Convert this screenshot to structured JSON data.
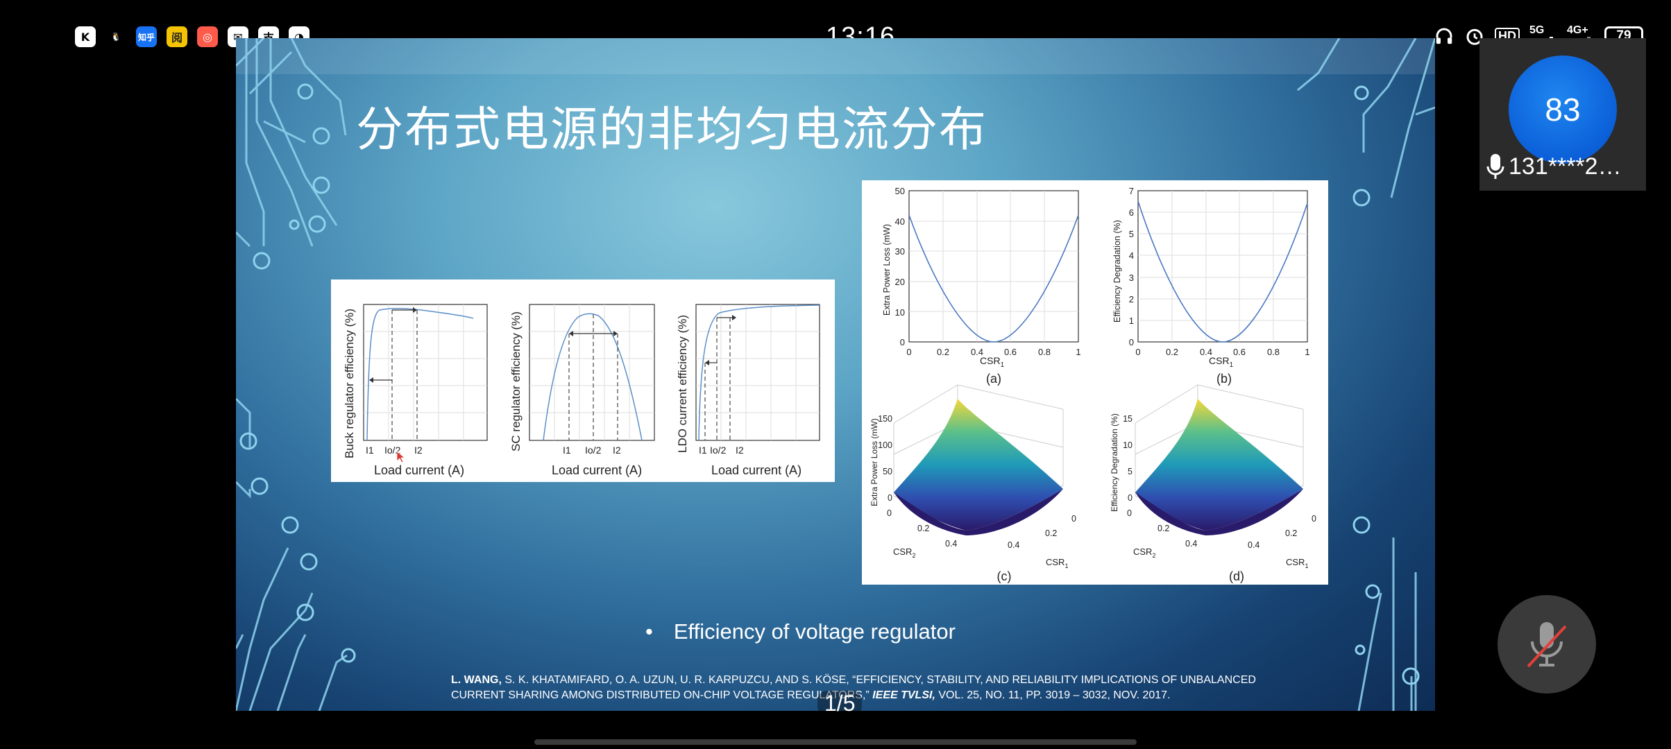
{
  "status_bar": {
    "time": "13:16",
    "apps": [
      {
        "name": "kuwo-icon",
        "glyph": "K",
        "color": "#ffffff",
        "fg": "#000000"
      },
      {
        "name": "qq-icon",
        "glyph": "🐧",
        "color": "#000000",
        "fg": "#ffffff"
      },
      {
        "name": "zhihu-icon",
        "glyph": "知乎",
        "color": "#1772f6",
        "fg": "#ffffff"
      },
      {
        "name": "reading-icon",
        "glyph": "阅",
        "color": "#f5c400",
        "fg": "#222222"
      },
      {
        "name": "shop-icon",
        "glyph": "◎",
        "color": "#ff5a4a",
        "fg": "#ffffff"
      },
      {
        "name": "mail-icon",
        "glyph": "✉",
        "color": "#ffffff",
        "fg": "#000000"
      },
      {
        "name": "alipay-icon",
        "glyph": "支",
        "color": "#ffffff",
        "fg": "#000000"
      },
      {
        "name": "compass-icon",
        "glyph": "◔",
        "color": "#ffffff",
        "fg": "#000000"
      }
    ],
    "indicators": [
      "HD",
      "5G",
      "4G+"
    ],
    "battery": "79"
  },
  "slide": {
    "title": "分布式电源的非均匀电流分布",
    "bullet": "Efficiency of voltage regulator",
    "citation_authors": "L. WANG,",
    "citation_rest": " S. K. KHATAMIFARD,  O. A. UZUN, U. R. KARPUZCU, AND S. KÖSE, “EFFICIENCY, STABILITY, AND RELIABILITY IMPLICATIONS OF UNBALANCED CURRENT SHARING AMONG DISTRIBUTED ON-CHIP VOLTAGE REGULATORS,”",
    "citation_journal": " IEEE TVLSI,",
    "citation_tail": "  VOL. 25, NO. 11, PP. 3019 – 3032, NOV. 2017.",
    "page_indicator": "1/5",
    "figure_left": {
      "panels": [
        {
          "ylabel": "Buck regulator efficiency (%)",
          "xlabel": "Load current (A)",
          "ticks": [
            "I1",
            "Io/2",
            "I2"
          ]
        },
        {
          "ylabel": "SC regulator efficiency (%)",
          "xlabel": "Load current (A)",
          "ticks": [
            "I1",
            "Io/2",
            "I2"
          ]
        },
        {
          "ylabel": "LDO current efficiency (%)",
          "xlabel": "Load current (A)",
          "ticks": [
            "I1",
            "Io/2",
            "I2"
          ]
        }
      ]
    },
    "figure_right": {
      "a": {
        "ylabel": "Extra Power Loss (mW)",
        "xlabel": "CSR",
        "xsub": "1",
        "yticks": [
          "0",
          "10",
          "20",
          "30",
          "40",
          "50"
        ],
        "xticks": [
          "0",
          "0.2",
          "0.4",
          "0.6",
          "0.8",
          "1"
        ],
        "caption": "(a)"
      },
      "b": {
        "ylabel": "Efficiency Degradation (%)",
        "xlabel": "CSR",
        "xsub": "1",
        "yticks": [
          "0",
          "1",
          "2",
          "3",
          "4",
          "5",
          "6",
          "7"
        ],
        "xticks": [
          "0",
          "0.2",
          "0.4",
          "0.6",
          "0.8",
          "1"
        ],
        "caption": "(b)"
      },
      "c": {
        "zlabel": "Extra Power Loss (mW)",
        "zticks": [
          "0",
          "50",
          "100",
          "150"
        ],
        "xlabel1": "CSR",
        "xlabel1_sub": "2",
        "xlabel2": "CSR",
        "xlabel2_sub": "1",
        "ticks1": [
          "0",
          "0.2",
          "0.4"
        ],
        "ticks2": [
          "0",
          "0.2",
          "0.4"
        ],
        "caption": "(c)"
      },
      "d": {
        "zlabel": "Efficiency Degradation (%)",
        "zticks": [
          "0",
          "5",
          "10",
          "15"
        ],
        "xlabel1": "CSR",
        "xlabel1_sub": "2",
        "xlabel2": "CSR",
        "xlabel2_sub": "1",
        "ticks1": [
          "0",
          "0.2",
          "0.4"
        ],
        "ticks2": [
          "0",
          "0.2",
          "0.4"
        ],
        "caption": "(d)"
      }
    }
  },
  "participant": {
    "avatar_text": "83",
    "name": "131****2…"
  }
}
